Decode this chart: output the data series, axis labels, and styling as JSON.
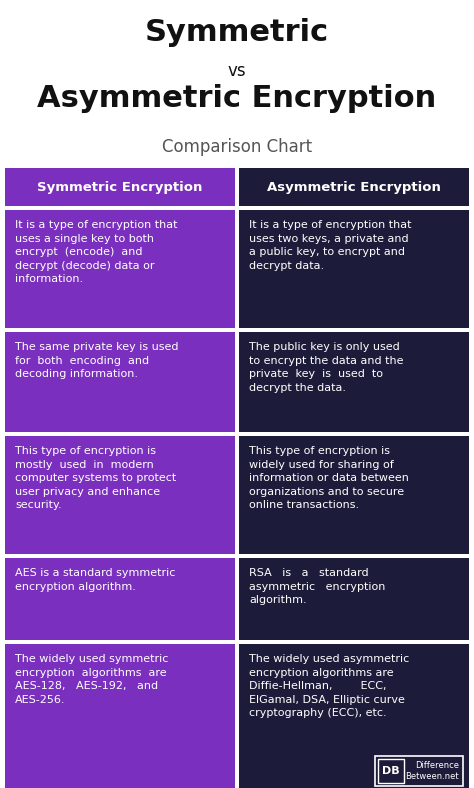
{
  "title_line1": "Symmetric",
  "title_vs": "vs",
  "title_line2": "Asymmetric Encryption",
  "subtitle": "Comparison Chart",
  "header_left": "Symmetric Encryption",
  "header_right": "Asymmetric Encryption",
  "color_left": "#7B2FBE",
  "color_right": "#1C1C3A",
  "color_white": "#FFFFFF",
  "color_bg": "#FFFFFF",
  "color_title": "#111111",
  "color_subtitle": "#555555",
  "rows": [
    {
      "left": "It is a type of encryption that\nuses a single key to both\nencrypt  (encode)  and\ndecrypt (decode) data or\ninformation.",
      "right": "It is a type of encryption that\nuses two keys, a private and\na public key, to encrypt and\ndecrypt data."
    },
    {
      "left": "The same private key is used\nfor  both  encoding  and\ndecoding information.",
      "right": "The public key is only used\nto encrypt the data and the\nprivate  key  is  used  to\ndecrypt the data."
    },
    {
      "left": "This type of encryption is\nmostly  used  in  modern\ncomputer systems to protect\nuser privacy and enhance\nsecurity.",
      "right": "This type of encryption is\nwidely used for sharing of\ninformation or data between\norganizations and to secure\nonline transactions."
    },
    {
      "left": "AES is a standard symmetric\nencryption algorithm.",
      "right": "RSA   is   a   standard\nasymmetric   encryption\nalgorithm."
    },
    {
      "left": "The widely used symmetric\nencryption  algorithms  are\nAES-128,   AES-192,   and\nAES-256.",
      "right": "The widely used asymmetric\nencryption algorithms are\nDiffie-Hellman,        ECC,\nElGamal, DSA, Elliptic curve\ncryptography (ECC), etc."
    }
  ],
  "logo_text1": "DB",
  "logo_text2": "Difference\nBetween.net"
}
